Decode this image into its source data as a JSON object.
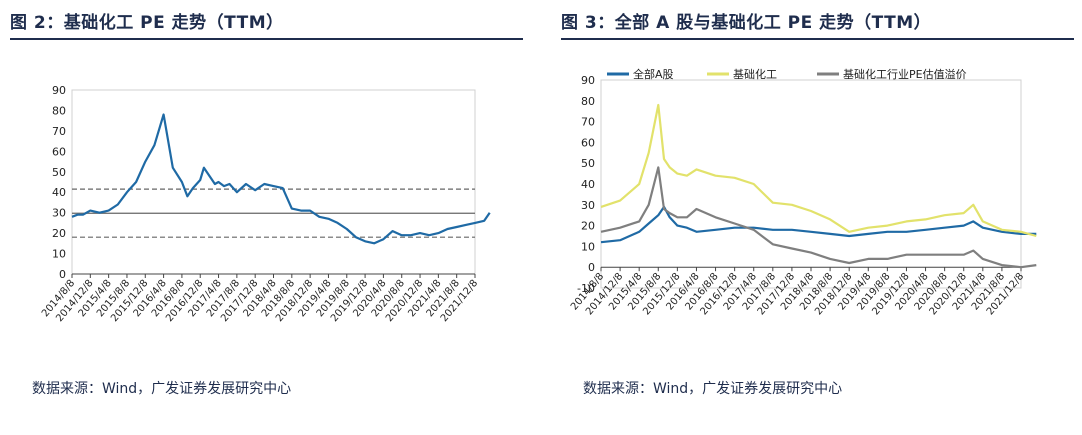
{
  "left": {
    "title": "图 2：基础化工 PE 走势（TTM）",
    "source": "数据来源：Wind，广发证券发展研究中心"
  },
  "right": {
    "title": "图 3：全部 A 股与基础化工 PE 走势（TTM）",
    "source": "数据来源：Wind，广发证券发展研究中心"
  },
  "chart_data": [
    {
      "type": "line",
      "title": "图 2：基础化工 PE 走势（TTM）",
      "xlabel": "",
      "ylabel": "",
      "ylim": [
        0,
        90
      ],
      "yticks": [
        0,
        10,
        20,
        30,
        40,
        50,
        60,
        70,
        80,
        90
      ],
      "xticks": [
        "2014/8/8",
        "2014/12/8",
        "2015/4/8",
        "2015/8/8",
        "2015/12/8",
        "2016/4/8",
        "2016/8/8",
        "2016/12/8",
        "2017/4/8",
        "2017/8/8",
        "2017/12/8",
        "2018/4/8",
        "2018/8/8",
        "2018/12/8",
        "2019/4/8",
        "2019/8/8",
        "2019/12/8",
        "2020/4/8",
        "2020/8/8",
        "2020/12/8",
        "2021/4/8",
        "2021/8/8",
        "2021/12/8"
      ],
      "reference_lines": [
        {
          "value": 41.5,
          "style": "dashed"
        },
        {
          "value": 29.7,
          "style": "solid"
        },
        {
          "value": 18.0,
          "style": "dashed"
        }
      ],
      "series": [
        {
          "name": "",
          "color": "#1f6aa5",
          "x": [
            0,
            0.3,
            0.6,
            1,
            1.5,
            2,
            2.5,
            3,
            3.5,
            4,
            4.5,
            5,
            5.5,
            6,
            6.3,
            6.6,
            6.8,
            7,
            7.2,
            7.5,
            7.8,
            8,
            8.3,
            8.6,
            9,
            9.5,
            10,
            10.5,
            11,
            11.5,
            12,
            12.5,
            13,
            13.5,
            14,
            14.5,
            15,
            15.5,
            16,
            16.5,
            17,
            17.5,
            18,
            18.5,
            19,
            19.5,
            20,
            20.5,
            21,
            21.5,
            22,
            22.5,
            22.8
          ],
          "y": [
            28,
            29,
            29,
            31,
            30,
            31,
            34,
            40,
            45,
            55,
            63,
            78,
            52,
            45,
            38,
            42,
            44,
            46,
            52,
            48,
            44,
            45,
            43,
            44,
            40,
            44,
            41,
            44,
            43,
            42,
            32,
            31,
            31,
            28,
            27,
            25,
            22,
            18,
            16,
            15,
            17,
            21,
            19,
            19,
            20,
            19,
            20,
            22,
            23,
            24,
            25,
            26,
            30
          ]
        }
      ]
    },
    {
      "type": "line",
      "title": "图 3：全部 A 股与基础化工 PE 走势（TTM）",
      "xlabel": "",
      "ylabel": "",
      "ylim": [
        -10,
        90
      ],
      "yticks": [
        -10,
        0,
        10,
        20,
        30,
        40,
        50,
        60,
        70,
        80,
        90
      ],
      "xticks": [
        "2014/8/8",
        "2014/12/8",
        "2015/4/8",
        "2015/8/8",
        "2015/12/8",
        "2016/4/8",
        "2016/8/8",
        "2016/12/8",
        "2017/4/8",
        "2017/8/8",
        "2017/12/8",
        "2018/4/8",
        "2018/8/8",
        "2018/12/8",
        "2019/4/8",
        "2019/8/8",
        "2019/12/8",
        "2020/4/8",
        "2020/8/8",
        "2020/12/8",
        "2021/4/8",
        "2021/8/8",
        "2021/12/8"
      ],
      "legend": "top",
      "series": [
        {
          "name": "全部A股",
          "color": "#1f6aa5",
          "x": [
            0,
            1,
            2,
            2.5,
            3,
            3.3,
            3.6,
            4,
            4.5,
            5,
            6,
            7,
            8,
            9,
            10,
            11,
            12,
            13,
            14,
            15,
            16,
            17,
            18,
            19,
            19.5,
            20,
            21,
            22,
            22.8
          ],
          "y": [
            12,
            13,
            17,
            21,
            25,
            29,
            24,
            20,
            19,
            17,
            18,
            19,
            19,
            18,
            18,
            17,
            16,
            15,
            16,
            17,
            17,
            18,
            19,
            20,
            22,
            19,
            17,
            16,
            16
          ]
        },
        {
          "name": "基础化工",
          "color": "#e2e26b",
          "x": [
            0,
            1,
            2,
            2.5,
            3,
            3.3,
            3.6,
            4,
            4.5,
            5,
            6,
            7,
            8,
            9,
            10,
            11,
            12,
            13,
            14,
            15,
            16,
            17,
            18,
            19,
            19.5,
            20,
            21,
            22,
            22.8
          ],
          "y": [
            29,
            32,
            40,
            55,
            78,
            52,
            48,
            45,
            44,
            47,
            44,
            43,
            40,
            31,
            30,
            27,
            23,
            17,
            19,
            20,
            22,
            23,
            25,
            26,
            30,
            22,
            18,
            17,
            15
          ]
        },
        {
          "name": "基础化工行业PE估值溢价",
          "color": "#7f7f7f",
          "x": [
            0,
            1,
            2,
            2.5,
            3,
            3.3,
            3.6,
            4,
            4.5,
            5,
            6,
            7,
            8,
            9,
            10,
            11,
            12,
            13,
            14,
            15,
            16,
            17,
            18,
            19,
            19.5,
            20,
            21,
            22,
            22.8
          ],
          "y": [
            17,
            19,
            22,
            30,
            48,
            28,
            26,
            24,
            24,
            28,
            24,
            21,
            18,
            11,
            9,
            7,
            4,
            2,
            4,
            4,
            6,
            6,
            6,
            6,
            8,
            4,
            1,
            0,
            1
          ]
        }
      ]
    }
  ]
}
